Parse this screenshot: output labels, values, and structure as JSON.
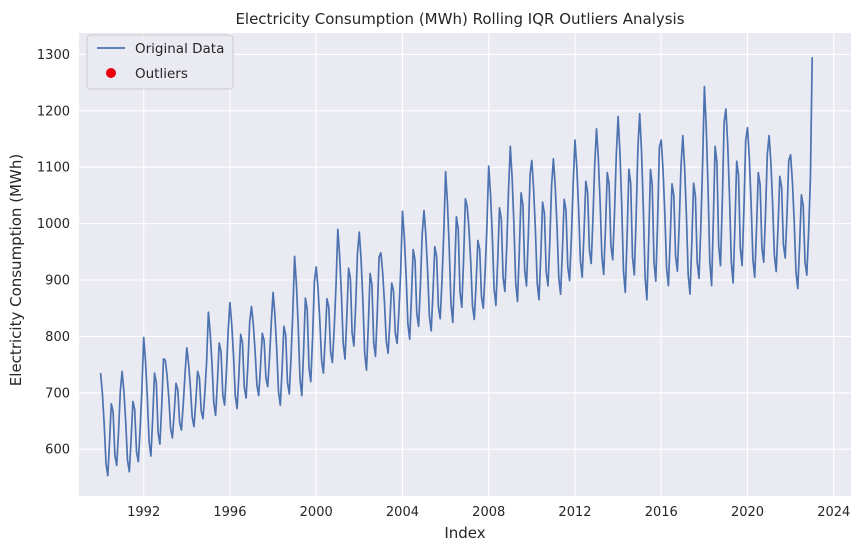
{
  "chart_data": {
    "type": "line",
    "title": "Electricity Consumption (MWh) Rolling IQR Outliers Analysis",
    "xlabel": "Index",
    "ylabel": "Electricity Consumption (MWh)",
    "xlim": [
      1989.0,
      2024.8
    ],
    "ylim": [
      517,
      1338
    ],
    "x_ticks": [
      1992,
      1996,
      2000,
      2004,
      2008,
      2012,
      2016,
      2020,
      2024
    ],
    "y_ticks": [
      600,
      700,
      800,
      900,
      1000,
      1100,
      1200,
      1300
    ],
    "grid": true,
    "legend_position": "top-left",
    "legend": [
      {
        "label": "Original Data",
        "marker": "line",
        "color": "#4c72b0"
      },
      {
        "label": "Outliers",
        "marker": "dot",
        "color": "#e8000b"
      }
    ],
    "series": [
      {
        "name": "Original Data",
        "color": "#4c72b0",
        "x_start_year": 1990.0,
        "x_step_months": 1,
        "annual_peaks": [
          735,
          738,
          798,
          758,
          780,
          843,
          860,
          853,
          878,
          942,
          923,
          990,
          985,
          948,
          1022,
          1023,
          1092,
          1030,
          1102,
          1137,
          1112,
          1115,
          1148,
          1168,
          1190,
          1195,
          1148,
          1156,
          1243,
          1203,
          1170,
          1156,
          1122
        ],
        "annual_troughs": [
          553,
          560,
          588,
          620,
          640,
          660,
          672,
          695,
          678,
          695,
          735,
          760,
          740,
          770,
          795,
          810,
          825,
          830,
          855,
          862,
          865,
          875,
          905,
          910,
          878,
          865,
          890,
          875,
          890,
          895,
          905,
          915,
          885
        ],
        "final_value": 1295
      },
      {
        "name": "Outliers",
        "color": "#e8000b",
        "points": []
      }
    ]
  }
}
